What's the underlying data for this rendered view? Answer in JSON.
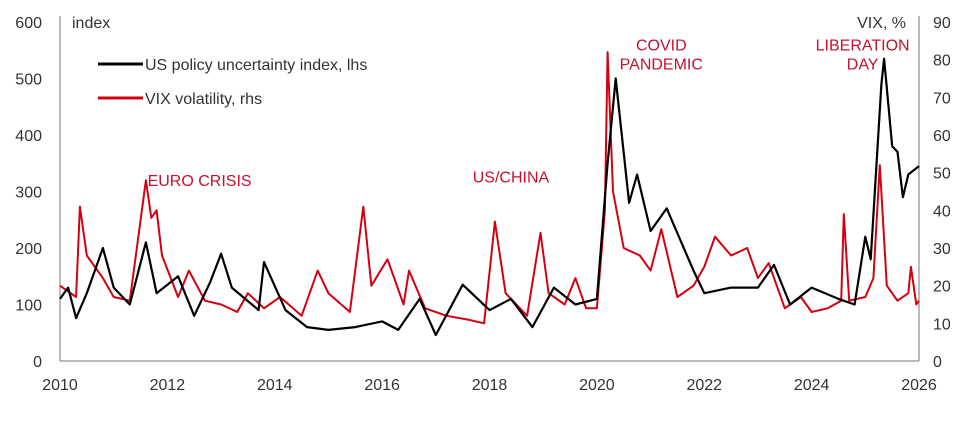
{
  "chart_data": {
    "type": "line",
    "left_axis": {
      "label": "index",
      "range": [
        0,
        600
      ],
      "ticks": [
        0,
        100,
        200,
        300,
        400,
        500,
        600
      ]
    },
    "right_axis": {
      "label": "VIX, %",
      "range": [
        0,
        90
      ],
      "ticks": [
        0,
        10,
        20,
        30,
        40,
        50,
        60,
        70,
        80,
        90
      ]
    },
    "x_axis": {
      "range": [
        2010,
        2026
      ],
      "ticks": [
        2010,
        2012,
        2014,
        2016,
        2018,
        2020,
        2022,
        2024,
        2026
      ]
    },
    "grid": false,
    "legend_placement": "top-left",
    "series": [
      {
        "name": "US policy uncertainty index, lhs",
        "axis": "left",
        "color": "#000000",
        "x": [
          2010.0,
          2010.15,
          2010.3,
          2010.5,
          2010.8,
          2011.0,
          2011.3,
          2011.6,
          2011.8,
          2012.2,
          2012.5,
          2012.8,
          2013.0,
          2013.2,
          2013.7,
          2013.8,
          2014.2,
          2014.6,
          2015.0,
          2015.5,
          2016.0,
          2016.3,
          2016.7,
          2017.0,
          2017.5,
          2018.0,
          2018.4,
          2018.8,
          2019.2,
          2019.6,
          2020.0,
          2020.2,
          2020.35,
          2020.6,
          2020.75,
          2021.0,
          2021.3,
          2021.8,
          2022.0,
          2022.5,
          2023.0,
          2023.3,
          2023.6,
          2024.0,
          2024.5,
          2024.8,
          2025.0,
          2025.1,
          2025.3,
          2025.35,
          2025.5,
          2025.6,
          2025.7,
          2025.8,
          2026.0
        ],
        "values": [
          110,
          130,
          76,
          120,
          200,
          130,
          100,
          210,
          120,
          150,
          80,
          140,
          190,
          130,
          90,
          175,
          90,
          60,
          55,
          60,
          70,
          55,
          110,
          46,
          135,
          90,
          110,
          60,
          130,
          100,
          110,
          350,
          500,
          280,
          330,
          230,
          270,
          160,
          120,
          130,
          130,
          170,
          100,
          130,
          110,
          100,
          220,
          180,
          490,
          535,
          380,
          370,
          290,
          330,
          345
        ]
      },
      {
        "name": "VIX volatility, rhs",
        "axis": "right",
        "color": "#d40011",
        "x": [
          2010.0,
          2010.3,
          2010.37,
          2010.5,
          2010.8,
          2011.0,
          2011.3,
          2011.6,
          2011.7,
          2011.8,
          2011.9,
          2012.2,
          2012.4,
          2012.7,
          2013.0,
          2013.3,
          2013.5,
          2013.8,
          2014.1,
          2014.5,
          2014.8,
          2015.0,
          2015.4,
          2015.65,
          2015.8,
          2016.1,
          2016.4,
          2016.5,
          2016.8,
          2017.2,
          2017.6,
          2017.9,
          2018.1,
          2018.3,
          2018.7,
          2018.95,
          2019.1,
          2019.4,
          2019.6,
          2019.8,
          2020.0,
          2020.15,
          2020.2,
          2020.3,
          2020.5,
          2020.8,
          2021.0,
          2021.2,
          2021.5,
          2021.8,
          2022.0,
          2022.2,
          2022.5,
          2022.8,
          2023.0,
          2023.2,
          2023.5,
          2023.8,
          2024.0,
          2024.3,
          2024.55,
          2024.6,
          2024.7,
          2025.0,
          2025.15,
          2025.27,
          2025.4,
          2025.6,
          2025.8,
          2025.85,
          2025.95,
          2026.0
        ],
        "values": [
          20,
          17,
          41,
          28,
          22,
          17,
          16,
          48,
          38,
          40,
          28,
          17,
          24,
          16,
          15,
          13,
          18,
          14,
          17,
          12,
          24,
          18,
          13,
          41,
          20,
          27,
          15,
          24,
          14,
          12,
          11,
          10,
          37,
          18,
          12,
          34,
          18,
          15,
          22,
          14,
          14,
          40,
          82,
          45,
          30,
          28,
          24,
          35,
          17,
          20,
          25,
          33,
          28,
          30,
          22,
          26,
          14,
          17,
          13,
          14,
          16,
          39,
          16,
          17,
          22,
          52,
          20,
          16,
          18,
          25,
          15,
          16
        ]
      }
    ],
    "annotations": [
      {
        "text": "EURO CRISIS",
        "x": 2012.6,
        "y_right": 48
      },
      {
        "text": "US/CHINA",
        "x": 2018.4,
        "y_right": 49
      },
      {
        "text": "COVID",
        "x": 2021.2,
        "y_right": 84
      },
      {
        "text": "PANDEMIC",
        "x": 2021.2,
        "y_right": 79
      },
      {
        "text": "LIBERATION",
        "x": 2024.95,
        "y_right": 84
      },
      {
        "text": "DAY",
        "x": 2024.95,
        "y_right": 79
      }
    ],
    "annotation_color": "#c8102e"
  }
}
